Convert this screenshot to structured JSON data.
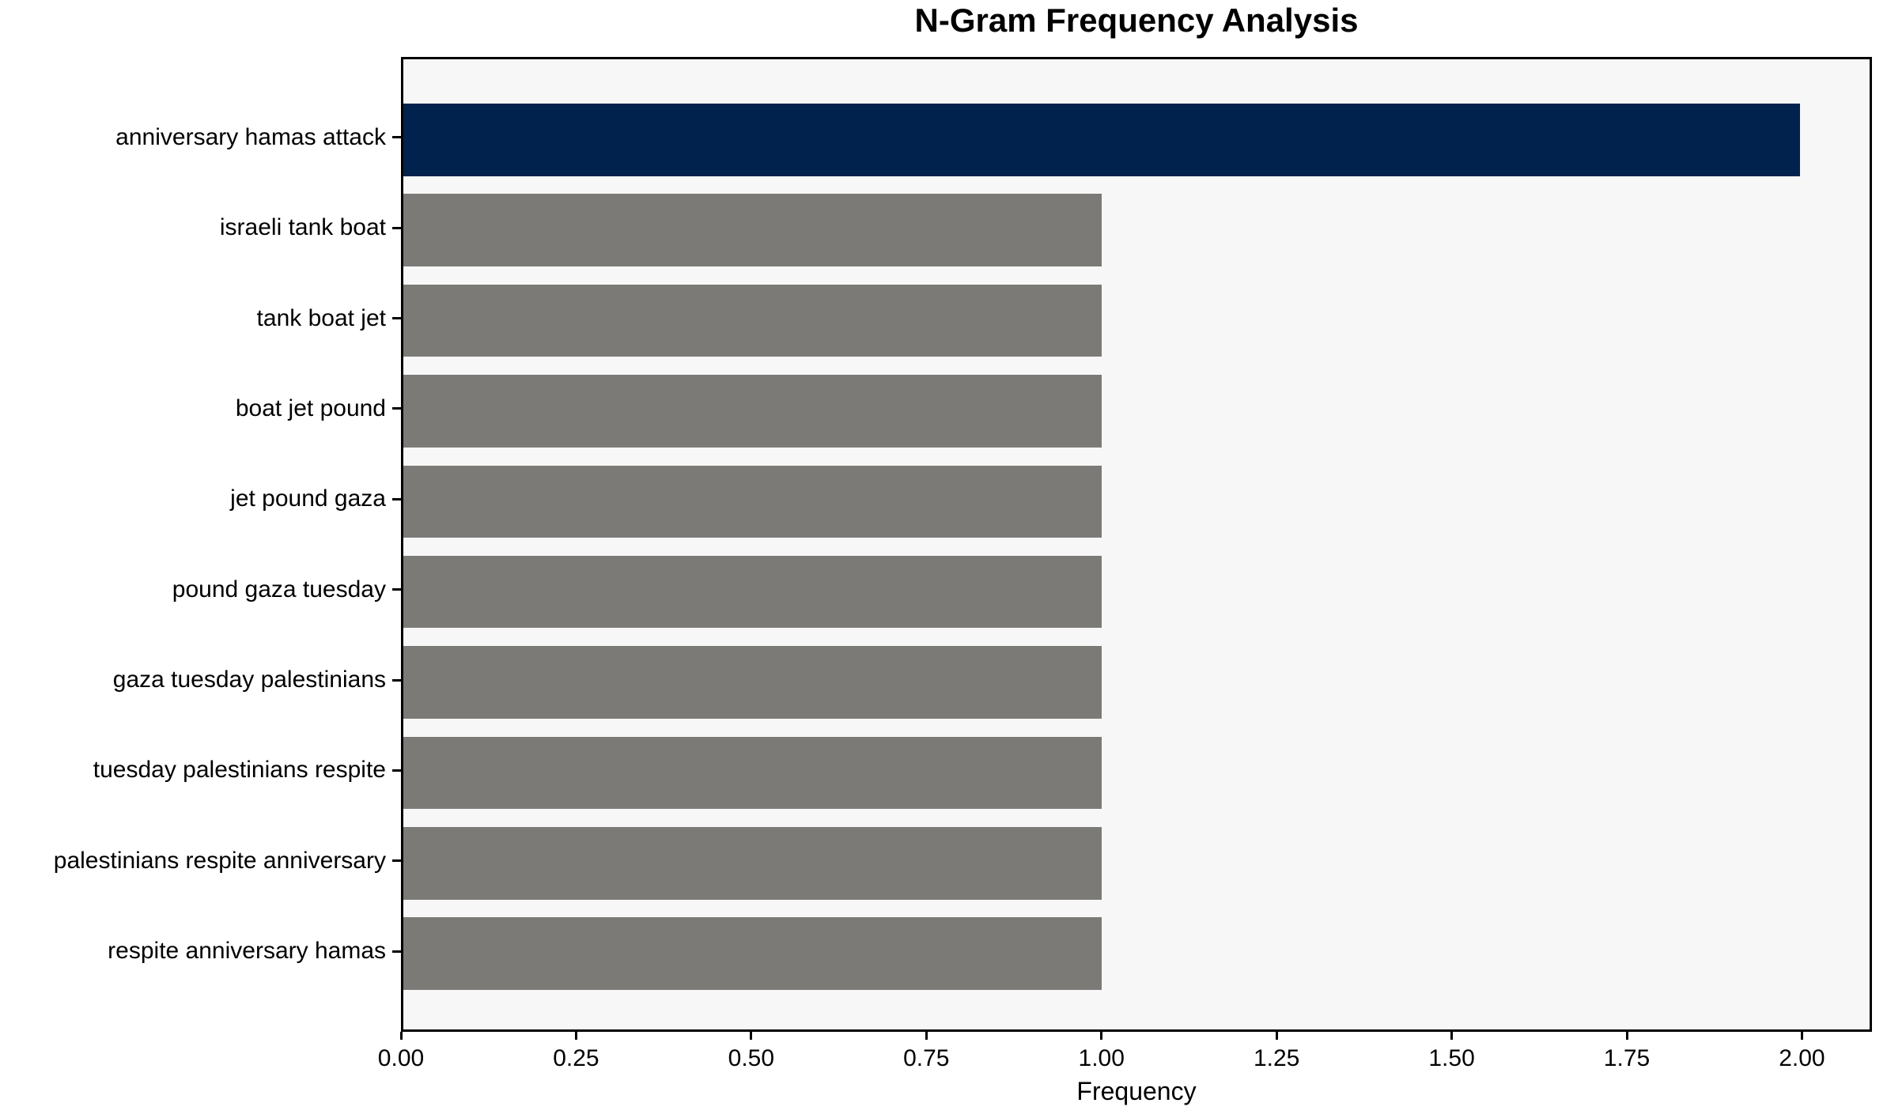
{
  "chart_data": {
    "type": "bar",
    "orientation": "horizontal",
    "title": "N-Gram Frequency Analysis",
    "xlabel": "Frequency",
    "ylabel": "",
    "categories": [
      "anniversary hamas attack",
      "israeli tank boat",
      "tank boat jet",
      "boat jet pound",
      "jet pound gaza",
      "pound gaza tuesday",
      "gaza tuesday palestinians",
      "tuesday palestinians respite",
      "palestinians respite anniversary",
      "respite anniversary hamas"
    ],
    "values": [
      2,
      1,
      1,
      1,
      1,
      1,
      1,
      1,
      1,
      1
    ],
    "bar_colors": [
      "#02224e",
      "#7b7a77",
      "#7b7a77",
      "#7b7a77",
      "#7b7a77",
      "#7b7a77",
      "#7b7a77",
      "#7b7a77",
      "#7b7a77",
      "#7b7a77"
    ],
    "xlim": [
      0,
      2.1
    ],
    "xticks": [
      0.0,
      0.25,
      0.5,
      0.75,
      1.0,
      1.25,
      1.5,
      1.75,
      2.0
    ],
    "xtick_labels": [
      "0.00",
      "0.25",
      "0.50",
      "0.75",
      "1.00",
      "1.25",
      "1.50",
      "1.75",
      "2.00"
    ],
    "grid": false,
    "legend": null,
    "colors": {
      "highlight_bar": "#02224e",
      "default_bar": "#7b7a77",
      "plot_background": "#f7f7f7",
      "figure_background": "#ffffff",
      "axis": "#000000",
      "text": "#000000"
    }
  }
}
